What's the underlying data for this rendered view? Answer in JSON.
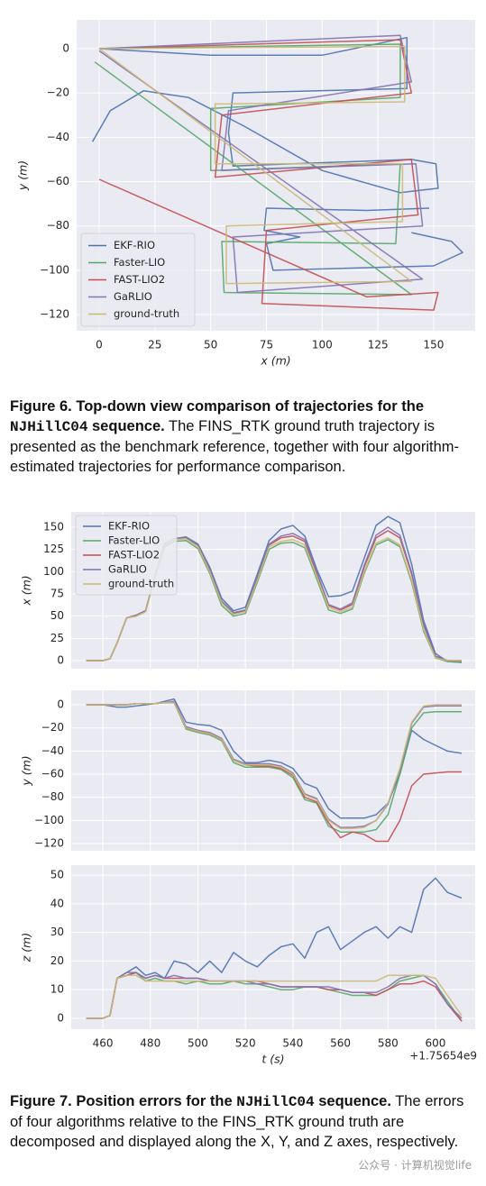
{
  "chart_data": [
    {
      "type": "line",
      "xlabel": "x (m)",
      "ylabel": "y (m)",
      "xlim": [
        -10.1,
        168.6
      ],
      "ylim": [
        -127.3,
        13
      ],
      "xticks": [
        0,
        25,
        50,
        75,
        100,
        125,
        150
      ],
      "yticks": [
        {
          "value": -120,
          "label": "−120"
        },
        {
          "value": -100,
          "label": "−100"
        },
        {
          "value": -80,
          "label": "−80"
        },
        {
          "value": -60,
          "label": "−60"
        },
        {
          "value": -40,
          "label": "−40"
        },
        {
          "value": -20,
          "label": "−20"
        },
        0
      ],
      "grid": true,
      "legend": "lower left",
      "series": [
        {
          "name": "EKF-RIO",
          "color": "#4c72b0",
          "x": [
            -3,
            5,
            20,
            40,
            65,
            100,
            135,
            152,
            151,
            140,
            60,
            58,
            60,
            138,
            138,
            100,
            50,
            0,
            null,
            148,
            120,
            75,
            74,
            90,
            75,
            78,
            150,
            163,
            158,
            140
          ],
          "values": [
            -42,
            -28,
            -19,
            -22,
            -35,
            -55,
            -65,
            -63,
            -52,
            -50,
            -53,
            -38,
            -20,
            -18,
            5,
            -3,
            -3,
            0,
            null,
            -72,
            -73,
            -72,
            -82,
            -85,
            -88,
            -100,
            -98,
            -92,
            -87,
            -83
          ]
        },
        {
          "name": "Faster-LIO",
          "color": "#55a868",
          "x": [
            0,
            135,
            135,
            50,
            50,
            135,
            133,
            55,
            56,
            140,
            -2
          ],
          "values": [
            0,
            2,
            -22,
            -27,
            -55,
            -52,
            -88,
            -87,
            -110,
            -111,
            -6
          ]
        },
        {
          "name": "FAST-LIO2",
          "color": "#c44e52",
          "x": [
            0,
            135,
            140,
            55,
            52,
            140,
            143,
            75,
            73,
            150,
            152,
            120,
            0
          ],
          "values": [
            0,
            4,
            -20,
            -30,
            -58,
            -50,
            -75,
            -82,
            -115,
            -118,
            -110,
            -112,
            -59
          ]
        },
        {
          "name": "GaRLIO",
          "color": "#8172b2",
          "x": [
            0,
            135,
            140,
            58,
            55,
            142,
            145,
            60,
            62,
            145,
            0
          ],
          "values": [
            0,
            6,
            -15,
            -28,
            -55,
            -52,
            -80,
            -85,
            -110,
            -104,
            -1
          ]
        },
        {
          "name": "ground-truth",
          "color": "#ccb974",
          "x": [
            0,
            137,
            137,
            52,
            52,
            136,
            136,
            57,
            57,
            140,
            0
          ],
          "values": [
            0,
            1,
            -24,
            -25,
            -52,
            -52,
            -78,
            -80,
            -106,
            -105,
            0
          ]
        }
      ]
    },
    {
      "type": "line",
      "ylabel": "x (m)",
      "xlim": [
        446.7,
        616.7
      ],
      "ylim": [
        -9.1,
        167.2
      ],
      "yticks": [
        0,
        25,
        50,
        75,
        100,
        125,
        150
      ],
      "grid": true,
      "legend": "upper left",
      "x": [
        453,
        460,
        463,
        466,
        470,
        474,
        478,
        482,
        486,
        490,
        495,
        500,
        505,
        510,
        515,
        520,
        525,
        530,
        535,
        540,
        545,
        550,
        555,
        560,
        565,
        570,
        575,
        580,
        585,
        590,
        595,
        600,
        605,
        611
      ],
      "series": [
        {
          "name": "EKF-RIO",
          "color": "#4c72b0",
          "values": [
            0,
            0,
            2,
            20,
            48,
            51,
            56,
            96,
            131,
            137,
            139,
            131,
            105,
            70,
            56,
            60,
            97,
            135,
            148,
            152,
            140,
            103,
            72,
            73,
            78,
            115,
            152,
            162,
            155,
            108,
            45,
            8,
            -1,
            -2
          ]
        },
        {
          "name": "Faster-LIO",
          "color": "#55a868",
          "values": [
            0,
            0,
            2,
            20,
            48,
            50,
            55,
            95,
            128,
            134,
            135,
            126,
            98,
            62,
            50,
            53,
            88,
            125,
            132,
            133,
            127,
            92,
            57,
            53,
            58,
            98,
            130,
            136,
            128,
            88,
            33,
            3,
            -1,
            -2
          ]
        },
        {
          "name": "FAST-LIO2",
          "color": "#c44e52",
          "values": [
            0,
            0,
            2,
            20,
            48,
            51,
            56,
            96,
            130,
            137,
            138,
            130,
            102,
            66,
            53,
            56,
            92,
            130,
            138,
            140,
            134,
            98,
            62,
            57,
            63,
            105,
            138,
            146,
            138,
            97,
            40,
            5,
            0,
            0
          ]
        },
        {
          "name": "GaRLIO",
          "color": "#8172b2",
          "values": [
            0,
            0,
            2,
            20,
            48,
            51,
            56,
            96,
            131,
            137,
            138,
            130,
            103,
            67,
            54,
            57,
            93,
            131,
            140,
            143,
            136,
            100,
            63,
            58,
            65,
            107,
            141,
            150,
            141,
            99,
            41,
            5,
            0,
            -1
          ]
        },
        {
          "name": "ground-truth",
          "color": "#ccb974",
          "values": [
            0,
            0,
            2,
            20,
            48,
            50,
            55,
            95,
            130,
            136,
            137,
            128,
            100,
            65,
            52,
            55,
            90,
            128,
            134,
            136,
            130,
            95,
            60,
            55,
            60,
            100,
            132,
            138,
            130,
            90,
            35,
            3,
            0,
            0
          ]
        }
      ]
    },
    {
      "type": "line",
      "ylabel": "y (m)",
      "xlim": [
        446.7,
        616.7
      ],
      "ylim": [
        -126.2,
        12.5
      ],
      "yticks": [
        {
          "value": -120,
          "label": "−120"
        },
        {
          "value": -100,
          "label": "−100"
        },
        {
          "value": -80,
          "label": "−80"
        },
        {
          "value": -60,
          "label": "−60"
        },
        {
          "value": -40,
          "label": "−40"
        },
        {
          "value": -20,
          "label": "−20"
        },
        0
      ],
      "grid": true,
      "x": [
        453,
        460,
        463,
        466,
        470,
        474,
        478,
        482,
        486,
        490,
        495,
        500,
        505,
        510,
        515,
        520,
        525,
        530,
        535,
        540,
        545,
        550,
        555,
        560,
        565,
        570,
        575,
        580,
        585,
        590,
        595,
        600,
        605,
        611
      ],
      "series": [
        {
          "name": "EKF-RIO",
          "color": "#4c72b0",
          "values": [
            0,
            0,
            -1,
            -2,
            -2,
            -1,
            0,
            1,
            3,
            5,
            -15,
            -17,
            -18,
            -22,
            -40,
            -50,
            -50,
            -48,
            -50,
            -55,
            -68,
            -72,
            -90,
            -98,
            -98,
            -98,
            -95,
            -85,
            -60,
            -22,
            -30,
            -35,
            -40,
            -42
          ]
        },
        {
          "name": "Faster-LIO",
          "color": "#55a868",
          "values": [
            0,
            0,
            0,
            0,
            0,
            1,
            1,
            1,
            2,
            2,
            -21,
            -24,
            -26,
            -31,
            -50,
            -54,
            -54,
            -54,
            -56,
            -63,
            -82,
            -85,
            -105,
            -110,
            -110,
            -110,
            -108,
            -95,
            -60,
            -20,
            -7,
            -6,
            -6,
            -6
          ]
        },
        {
          "name": "FAST-LIO2",
          "color": "#c44e52",
          "values": [
            0,
            0,
            0,
            0,
            0,
            1,
            1,
            1,
            2,
            2,
            -20,
            -23,
            -25,
            -30,
            -48,
            -52,
            -53,
            -53,
            -55,
            -61,
            -80,
            -84,
            -102,
            -115,
            -110,
            -112,
            -118,
            -118,
            -100,
            -70,
            -60,
            -59,
            -58,
            -58
          ]
        },
        {
          "name": "GaRLIO",
          "color": "#8172b2",
          "values": [
            0,
            0,
            0,
            0,
            0,
            1,
            1,
            1,
            2,
            3,
            -19,
            -22,
            -24,
            -29,
            -47,
            -51,
            -51,
            -51,
            -53,
            -59,
            -77,
            -81,
            -99,
            -106,
            -106,
            -105,
            -100,
            -86,
            -56,
            -16,
            -2,
            -1,
            -1,
            -1
          ]
        },
        {
          "name": "ground-truth",
          "color": "#ccb974",
          "values": [
            0,
            0,
            0,
            0,
            0,
            1,
            1,
            1,
            2,
            2,
            -20,
            -23,
            -25,
            -30,
            -48,
            -52,
            -52,
            -52,
            -54,
            -60,
            -78,
            -82,
            -100,
            -107,
            -107,
            -106,
            -100,
            -85,
            -55,
            -15,
            -1,
            0,
            0,
            0
          ]
        }
      ]
    },
    {
      "type": "line",
      "ylabel": "z (m)",
      "xlabel": "t (s)",
      "offset_label": "+1.75654e9",
      "xlim": [
        446.7,
        616.7
      ],
      "ylim": [
        -3.8,
        53.5
      ],
      "xticks": [
        460,
        480,
        500,
        520,
        540,
        560,
        580,
        600
      ],
      "yticks": [
        0,
        10,
        20,
        30,
        40,
        50
      ],
      "grid": true,
      "x": [
        453,
        460,
        463,
        466,
        470,
        474,
        478,
        482,
        486,
        490,
        495,
        500,
        505,
        510,
        515,
        520,
        525,
        530,
        535,
        540,
        545,
        550,
        555,
        560,
        565,
        570,
        575,
        580,
        585,
        590,
        595,
        600,
        605,
        611
      ],
      "series": [
        {
          "name": "EKF-RIO",
          "color": "#4c72b0",
          "values": [
            0,
            0,
            1,
            14,
            16,
            18,
            15,
            16,
            14,
            20,
            19,
            16,
            20,
            16,
            23,
            20,
            18,
            22,
            25,
            26,
            21,
            30,
            32,
            24,
            27,
            30,
            32,
            28,
            32,
            30,
            45,
            49,
            44,
            42
          ]
        },
        {
          "name": "Faster-LIO",
          "color": "#55a868",
          "values": [
            0,
            0,
            1,
            14,
            15,
            16,
            13,
            14,
            13,
            13,
            12,
            13,
            12,
            12,
            13,
            12,
            12,
            11,
            10,
            10,
            11,
            11,
            10,
            9,
            8,
            8,
            8,
            10,
            13,
            14,
            15,
            12,
            6,
            -1
          ]
        },
        {
          "name": "FAST-LIO2",
          "color": "#c44e52",
          "values": [
            0,
            0,
            1,
            14,
            15,
            16,
            14,
            15,
            14,
            14,
            14,
            14,
            13,
            13,
            13,
            13,
            13,
            12,
            11,
            11,
            11,
            11,
            10,
            10,
            9,
            9,
            8,
            10,
            12,
            12,
            13,
            11,
            5,
            -1
          ]
        },
        {
          "name": "GaRLIO",
          "color": "#8172b2",
          "values": [
            0,
            0,
            1,
            14,
            16,
            16,
            14,
            15,
            14,
            15,
            14,
            14,
            13,
            13,
            13,
            13,
            12,
            12,
            11,
            11,
            11,
            11,
            11,
            10,
            9,
            9,
            9,
            11,
            14,
            15,
            15,
            12,
            5,
            0
          ]
        },
        {
          "name": "ground-truth",
          "color": "#ccb974",
          "values": [
            0,
            0,
            1,
            14,
            15,
            15,
            13,
            13,
            13,
            13,
            13,
            13,
            13,
            13,
            13,
            13,
            13,
            13,
            13,
            13,
            13,
            13,
            13,
            13,
            13,
            13,
            13,
            15,
            15,
            15,
            15,
            14,
            8,
            1
          ]
        }
      ]
    }
  ],
  "captions": [
    {
      "label": "Figure 6.",
      "bold": " Top-down view comparison of trajectories for the ",
      "code": "NJHillC04",
      "bold_end": " sequence.",
      "text": " The FINS_RTK ground truth trajectory is presented as the benchmark reference, together with four algorithm-estimated trajectories for performance comparison."
    },
    {
      "label": "Figure 7.",
      "bold": " Position errors for the ",
      "code": "NJHillC04",
      "bold_end": " sequence.",
      "text": " The errors of four algorithms relative to the FINS_RTK ground truth are decomposed and displayed along the X, Y, and Z axes, respectively."
    }
  ],
  "watermark": "公众号 · 计算机视觉life"
}
